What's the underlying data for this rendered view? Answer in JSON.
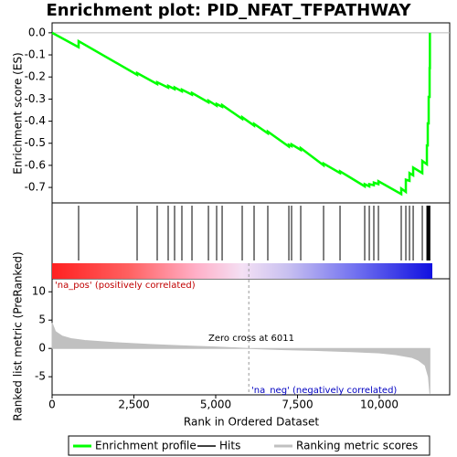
{
  "chart_data": [
    {
      "type": "line",
      "title": "Enrichment plot: PID_NFAT_TFPATHWAY",
      "y_label": "Enrichment score (ES)",
      "xlim": [
        0,
        12150
      ],
      "ylim": [
        -0.77,
        0.045
      ],
      "yticks": [
        {
          "value": 0,
          "label": "0.0"
        },
        -0.1,
        -0.2,
        -0.3,
        -0.4,
        -0.5,
        -0.6,
        -0.7
      ],
      "series": [
        {
          "name": "Enrichment profile",
          "color": "#00ff00",
          "x": [
            0,
            810,
            810,
            2598,
            2598,
            3212,
            3212,
            3547,
            3547,
            3743,
            3743,
            3966,
            3966,
            4274,
            4274,
            4777,
            4777,
            5028,
            5028,
            5196,
            5196,
            5810,
            5810,
            6173,
            6173,
            6592,
            6592,
            7235,
            7235,
            7318,
            7318,
            7598,
            7598,
            8296,
            8296,
            8799,
            8799,
            9553,
            9553,
            9693,
            9693,
            9832,
            9832,
            9972,
            9972,
            10670,
            10670,
            10810,
            10810,
            10922,
            10922,
            11034,
            11034,
            11313,
            11313,
            11453,
            11453,
            11480,
            11480,
            11508,
            11508,
            11536,
            11536,
            11545,
            11545
          ],
          "values": [
            0,
            -0.065,
            -0.038,
            -0.19,
            -0.182,
            -0.232,
            -0.224,
            -0.248,
            -0.24,
            -0.255,
            -0.247,
            -0.265,
            -0.257,
            -0.28,
            -0.272,
            -0.315,
            -0.307,
            -0.33,
            -0.322,
            -0.335,
            -0.327,
            -0.39,
            -0.382,
            -0.42,
            -0.412,
            -0.455,
            -0.447,
            -0.515,
            -0.507,
            -0.513,
            -0.505,
            -0.53,
            -0.522,
            -0.6,
            -0.592,
            -0.635,
            -0.627,
            -0.695,
            -0.685,
            -0.695,
            -0.685,
            -0.69,
            -0.678,
            -0.685,
            -0.672,
            -0.73,
            -0.705,
            -0.72,
            -0.665,
            -0.67,
            -0.635,
            -0.645,
            -0.61,
            -0.635,
            -0.58,
            -0.595,
            -0.51,
            -0.51,
            -0.41,
            -0.41,
            -0.29,
            -0.29,
            -0.16,
            -0.16,
            0
          ]
        }
      ],
      "hits": {
        "name": "Hits",
        "color": "#000000",
        "x": [
          810,
          2598,
          3212,
          3547,
          3743,
          3966,
          4274,
          4777,
          5028,
          5196,
          5810,
          6173,
          6592,
          7235,
          7318,
          7598,
          8296,
          8799,
          9553,
          9693,
          9832,
          9972,
          10670,
          10810,
          10922,
          11034,
          11313,
          11453,
          11480,
          11508,
          11536,
          11545
        ]
      }
    },
    {
      "type": "area",
      "x_label": "Rank in Ordered Dataset",
      "y_label": "Ranked list metric (PreRanked)",
      "xlim": [
        0,
        12150
      ],
      "ylim": [
        -8.2,
        12.3
      ],
      "xticks": [
        0,
        {
          "value": 2500,
          "label": "2,500"
        },
        {
          "value": 5000,
          "label": "5,000"
        },
        {
          "value": 7500,
          "label": "7,500"
        },
        {
          "value": 10000,
          "label": "10,000"
        }
      ],
      "yticks": [
        -5,
        0,
        5,
        10
      ],
      "series": [
        {
          "name": "Ranking metric scores",
          "color": "#c0c0c0",
          "x": [
            0,
            100,
            300,
            600,
            1000,
            2000,
            3000,
            4000,
            5000,
            6011,
            7000,
            8000,
            9000,
            10000,
            10500,
            11000,
            11200,
            11400,
            11500,
            11545
          ],
          "values": [
            4.5,
            3,
            2.2,
            1.7,
            1.4,
            1,
            0.7,
            0.45,
            0.25,
            0,
            -0.2,
            -0.35,
            -0.55,
            -0.8,
            -1.1,
            -1.6,
            -2.1,
            -3,
            -5,
            -8
          ]
        }
      ],
      "zero_cross": 6011,
      "annotations": [
        "'na_pos' (positively correlated)",
        "Zero cross at 6011",
        "'na_neg' (negatively correlated)"
      ]
    }
  ]
}
